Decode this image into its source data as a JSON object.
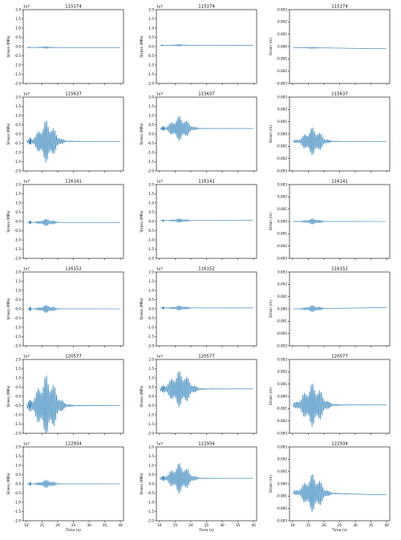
{
  "figure": {
    "xlabel": "Time (s)",
    "line_color": "#1f77b4"
  },
  "chart_data": [
    {
      "type": "line",
      "title": "115174",
      "ylabel": "Stress (MPa)",
      "offset_label": "1e7",
      "xlim": [
        9,
        41
      ],
      "ylim": [
        -2.0,
        2.0
      ],
      "y_decimals": 1,
      "xticks": [
        10,
        15,
        20,
        25,
        30,
        35,
        40
      ],
      "yticks": [
        -2.0,
        -1.5,
        -1.0,
        -0.5,
        0.0,
        0.5,
        1.0,
        1.5,
        2.0
      ],
      "series": [
        {
          "baseline_start": -0.05,
          "baseline_end": -0.05,
          "burst_amp": 0.05,
          "burst_center": 16.2,
          "burst_width": 1.6,
          "spike_amp": 0.03,
          "spike_time": 11.0
        }
      ]
    },
    {
      "type": "line",
      "title": "115174",
      "ylabel": "Stress (MPa)",
      "offset_label": "1e7",
      "xlim": [
        9,
        41
      ],
      "ylim": [
        -2.0,
        2.0
      ],
      "y_decimals": 1,
      "xticks": [
        10,
        15,
        20,
        25,
        30,
        35,
        40
      ],
      "yticks": [
        -2.0,
        -1.5,
        -1.0,
        -0.5,
        0.0,
        0.5,
        1.0,
        1.5,
        2.0
      ],
      "series": [
        {
          "baseline_start": 0.07,
          "baseline_end": 0.07,
          "burst_amp": 0.05,
          "burst_center": 16.2,
          "burst_width": 1.6,
          "spike_amp": 0.03,
          "spike_time": 11.0
        }
      ]
    },
    {
      "type": "line",
      "title": "115174",
      "ylabel": "Strain (m)",
      "offset_label": "",
      "xlim": [
        9,
        41
      ],
      "ylim": [
        -0.003,
        0.003
      ],
      "y_decimals": 3,
      "xticks": [
        10,
        15,
        20,
        25,
        30,
        35,
        40
      ],
      "yticks": [
        -0.003,
        -0.002,
        -0.001,
        0.0,
        0.001,
        0.002,
        0.003
      ],
      "series": [
        {
          "baseline_start": -8e-05,
          "baseline_end": -0.00018,
          "burst_amp": 6e-05,
          "burst_center": 16.2,
          "burst_width": 1.6,
          "spike_amp": 0.0,
          "spike_time": 11.0
        }
      ]
    },
    {
      "type": "line",
      "title": "115637",
      "ylabel": "Stress (MPa)",
      "offset_label": "1e7",
      "xlim": [
        9,
        41
      ],
      "ylim": [
        -2.0,
        2.0
      ],
      "y_decimals": 1,
      "xticks": [
        10,
        15,
        20,
        25,
        30,
        35,
        40
      ],
      "yticks": [
        -2.0,
        -1.5,
        -1.0,
        -0.5,
        0.0,
        0.5,
        1.0,
        1.5,
        2.0
      ],
      "series": [
        {
          "baseline_start": -0.4,
          "baseline_end": -0.4,
          "burst_amp": 1.1,
          "burst_center": 16.5,
          "burst_width": 2.2,
          "spike_amp": 0.25,
          "spike_time": 11.2
        }
      ]
    },
    {
      "type": "line",
      "title": "115637",
      "ylabel": "Stress (MPa)",
      "offset_label": "1e7",
      "xlim": [
        9,
        41
      ],
      "ylim": [
        -2.0,
        2.0
      ],
      "y_decimals": 1,
      "xticks": [
        10,
        15,
        20,
        25,
        30,
        35,
        40
      ],
      "yticks": [
        -2.0,
        -1.5,
        -1.0,
        -0.5,
        0.0,
        0.5,
        1.0,
        1.5,
        2.0
      ],
      "series": [
        {
          "baseline_start": 0.3,
          "baseline_end": 0.3,
          "burst_amp": 0.65,
          "burst_center": 16.5,
          "burst_width": 2.2,
          "spike_amp": 0.15,
          "spike_time": 11.2
        }
      ]
    },
    {
      "type": "line",
      "title": "115637",
      "ylabel": "Strain (m)",
      "offset_label": "",
      "xlim": [
        9,
        41
      ],
      "ylim": [
        -0.003,
        0.003
      ],
      "y_decimals": 3,
      "xticks": [
        10,
        15,
        20,
        25,
        30,
        35,
        40
      ],
      "yticks": [
        -0.003,
        -0.002,
        -0.001,
        0.0,
        0.001,
        0.002,
        0.003
      ],
      "series": [
        {
          "baseline_start": -0.0006,
          "baseline_end": -0.0006,
          "burst_amp": 0.0011,
          "burst_center": 16.5,
          "burst_width": 2.2,
          "spike_amp": 0.0,
          "spike_time": 11.2
        }
      ]
    },
    {
      "type": "line",
      "title": "116141",
      "ylabel": "Stress (MPa)",
      "offset_label": "1e7",
      "xlim": [
        9,
        41
      ],
      "ylim": [
        -2.0,
        2.0
      ],
      "y_decimals": 1,
      "xticks": [
        10,
        15,
        20,
        25,
        30,
        35,
        40
      ],
      "yticks": [
        -2.0,
        -1.5,
        -1.0,
        -0.5,
        0.0,
        0.5,
        1.0,
        1.5,
        2.0
      ],
      "series": [
        {
          "baseline_start": -0.05,
          "baseline_end": -0.05,
          "burst_amp": 0.18,
          "burst_center": 16.5,
          "burst_width": 1.8,
          "spike_amp": 0.12,
          "spike_time": 11.2
        }
      ]
    },
    {
      "type": "line",
      "title": "116141",
      "ylabel": "Stress (MPa)",
      "offset_label": "1e7",
      "xlim": [
        9,
        41
      ],
      "ylim": [
        -2.0,
        2.0
      ],
      "y_decimals": 1,
      "xticks": [
        10,
        15,
        20,
        25,
        30,
        35,
        40
      ],
      "yticks": [
        -2.0,
        -1.5,
        -1.0,
        -0.5,
        0.0,
        0.5,
        1.0,
        1.5,
        2.0
      ],
      "series": [
        {
          "baseline_start": 0.05,
          "baseline_end": 0.05,
          "burst_amp": 0.1,
          "burst_center": 16.5,
          "burst_width": 1.8,
          "spike_amp": 0.06,
          "spike_time": 11.2
        }
      ]
    },
    {
      "type": "line",
      "title": "116141",
      "ylabel": "Strain (m)",
      "offset_label": "",
      "xlim": [
        9,
        41
      ],
      "ylim": [
        -0.003,
        0.003
      ],
      "y_decimals": 3,
      "xticks": [
        10,
        15,
        20,
        25,
        30,
        35,
        40
      ],
      "yticks": [
        -0.003,
        -0.002,
        -0.001,
        0.0,
        0.001,
        0.002,
        0.003
      ],
      "series": [
        {
          "baseline_start": 0.0,
          "baseline_end": 0.0,
          "burst_amp": 0.00022,
          "burst_center": 16.5,
          "burst_width": 1.8,
          "spike_amp": 0.0,
          "spike_time": 11.2
        }
      ]
    },
    {
      "type": "line",
      "title": "116152",
      "ylabel": "Stress (MPa)",
      "offset_label": "1e7",
      "xlim": [
        9,
        41
      ],
      "ylim": [
        -2.0,
        2.0
      ],
      "y_decimals": 1,
      "xticks": [
        10,
        15,
        20,
        25,
        30,
        35,
        40
      ],
      "yticks": [
        -2.0,
        -1.5,
        -1.0,
        -0.5,
        0.0,
        0.5,
        1.0,
        1.5,
        2.0
      ],
      "series": [
        {
          "baseline_start": 0.0,
          "baseline_end": 0.0,
          "burst_amp": 0.2,
          "burst_center": 16.5,
          "burst_width": 1.8,
          "spike_amp": 0.15,
          "spike_time": 11.2
        }
      ]
    },
    {
      "type": "line",
      "title": "116152",
      "ylabel": "Stress (MPa)",
      "offset_label": "1e7",
      "xlim": [
        9,
        41
      ],
      "ylim": [
        -2.0,
        2.0
      ],
      "y_decimals": 1,
      "xticks": [
        10,
        15,
        20,
        25,
        30,
        35,
        40
      ],
      "yticks": [
        -2.0,
        -1.5,
        -1.0,
        -0.5,
        0.0,
        0.5,
        1.0,
        1.5,
        2.0
      ],
      "series": [
        {
          "baseline_start": 0.05,
          "baseline_end": 0.05,
          "burst_amp": 0.12,
          "burst_center": 16.5,
          "burst_width": 1.8,
          "spike_amp": 0.08,
          "spike_time": 11.2
        }
      ]
    },
    {
      "type": "line",
      "title": "116152",
      "ylabel": "Strain (m)",
      "offset_label": "",
      "xlim": [
        9,
        41
      ],
      "ylim": [
        -0.003,
        0.003
      ],
      "y_decimals": 3,
      "xticks": [
        10,
        15,
        20,
        25,
        30,
        35,
        40
      ],
      "yticks": [
        -0.003,
        -0.002,
        -0.001,
        0.0,
        0.001,
        0.002,
        0.003
      ],
      "series": [
        {
          "baseline_start": 0.0,
          "baseline_end": 0.0001,
          "burst_amp": 0.00025,
          "burst_center": 16.5,
          "burst_width": 1.8,
          "spike_amp": 0.0,
          "spike_time": 11.2
        }
      ]
    },
    {
      "type": "line",
      "title": "120577",
      "ylabel": "Stress (MPa)",
      "offset_label": "1e7",
      "xlim": [
        9,
        41
      ],
      "ylim": [
        -2.0,
        2.0
      ],
      "y_decimals": 1,
      "xticks": [
        10,
        15,
        20,
        25,
        30,
        35,
        40
      ],
      "yticks": [
        -2.0,
        -1.5,
        -1.0,
        -0.5,
        0.0,
        0.5,
        1.0,
        1.5,
        2.0
      ],
      "series": [
        {
          "baseline_start": -0.5,
          "baseline_end": -0.5,
          "burst_amp": 1.6,
          "burst_center": 16.5,
          "burst_width": 2.5,
          "spike_amp": 0.35,
          "spike_time": 11.2
        }
      ]
    },
    {
      "type": "line",
      "title": "120577",
      "ylabel": "Stress (MPa)",
      "offset_label": "1e7",
      "xlim": [
        9,
        41
      ],
      "ylim": [
        -2.0,
        2.0
      ],
      "y_decimals": 1,
      "xticks": [
        10,
        15,
        20,
        25,
        30,
        35,
        40
      ],
      "yticks": [
        -2.0,
        -1.5,
        -1.0,
        -0.5,
        0.0,
        0.5,
        1.0,
        1.5,
        2.0
      ],
      "series": [
        {
          "baseline_start": 0.4,
          "baseline_end": 0.4,
          "burst_amp": 0.95,
          "burst_center": 16.5,
          "burst_width": 2.5,
          "spike_amp": 0.2,
          "spike_time": 11.2
        }
      ]
    },
    {
      "type": "line",
      "title": "120577",
      "ylabel": "Strain (m)",
      "offset_label": "",
      "xlim": [
        9,
        41
      ],
      "ylim": [
        -0.003,
        0.003
      ],
      "y_decimals": 3,
      "xticks": [
        10,
        15,
        20,
        25,
        30,
        35,
        40
      ],
      "yticks": [
        -0.003,
        -0.002,
        -0.001,
        0.0,
        0.001,
        0.002,
        0.003
      ],
      "series": [
        {
          "baseline_start": -0.0007,
          "baseline_end": -0.0007,
          "burst_amp": 0.0017,
          "burst_center": 16.5,
          "burst_width": 2.5,
          "spike_amp": 0.0,
          "spike_time": 11.2
        }
      ]
    },
    {
      "type": "line",
      "title": "122934",
      "ylabel": "Stress (MPa)",
      "offset_label": "1e7",
      "xlim": [
        9,
        41
      ],
      "ylim": [
        -2.0,
        2.0
      ],
      "y_decimals": 1,
      "xticks": [
        10,
        15,
        20,
        25,
        30,
        35,
        40
      ],
      "yticks": [
        -2.0,
        -1.5,
        -1.0,
        -0.5,
        0.0,
        0.5,
        1.0,
        1.5,
        2.0
      ],
      "series": [
        {
          "baseline_start": 0.0,
          "baseline_end": 0.0,
          "burst_amp": 0.2,
          "burst_center": 16.5,
          "burst_width": 1.8,
          "spike_amp": 0.12,
          "spike_time": 11.2
        }
      ]
    },
    {
      "type": "line",
      "title": "122934",
      "ylabel": "Stress (MPa)",
      "offset_label": "1e7",
      "xlim": [
        9,
        41
      ],
      "ylim": [
        -2.0,
        2.0
      ],
      "y_decimals": 1,
      "xticks": [
        10,
        15,
        20,
        25,
        30,
        35,
        40
      ],
      "yticks": [
        -2.0,
        -1.5,
        -1.0,
        -0.5,
        0.0,
        0.5,
        1.0,
        1.5,
        2.0
      ],
      "series": [
        {
          "baseline_start": 0.3,
          "baseline_end": 0.3,
          "burst_amp": 0.8,
          "burst_center": 16.5,
          "burst_width": 2.3,
          "spike_amp": 0.15,
          "spike_time": 11.2
        }
      ]
    },
    {
      "type": "line",
      "title": "122934",
      "ylabel": "Strain (m)",
      "offset_label": "",
      "xlim": [
        9,
        41
      ],
      "ylim": [
        -0.003,
        0.003
      ],
      "y_decimals": 3,
      "xticks": [
        10,
        15,
        20,
        25,
        30,
        35,
        40
      ],
      "yticks": [
        -0.003,
        -0.002,
        -0.001,
        0.0,
        0.001,
        0.002,
        0.003
      ],
      "series": [
        {
          "baseline_start": -0.0007,
          "baseline_end": -0.0009,
          "burst_amp": 0.0015,
          "burst_center": 16.5,
          "burst_width": 2.3,
          "spike_amp": 0.0,
          "spike_time": 11.2
        }
      ]
    }
  ]
}
